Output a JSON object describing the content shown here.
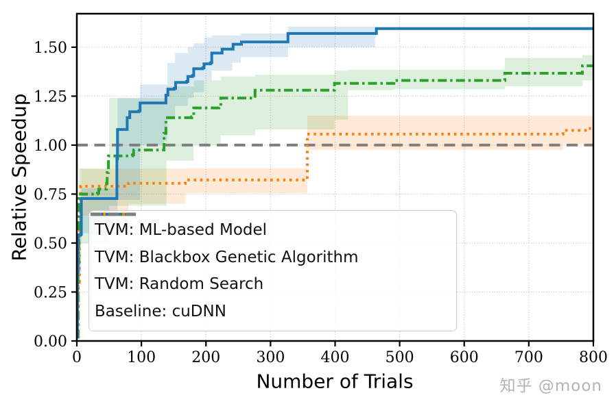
{
  "figure": {
    "watermark": "知乎 @moon",
    "background": "#ffffff",
    "frame_color": "#000000",
    "grid_color": "#c9c9c9"
  },
  "chart_data": {
    "type": "line",
    "title": "",
    "xlabel": "Number of Trials",
    "ylabel": "Relative Speedup",
    "xlim": [
      0,
      800
    ],
    "ylim": [
      0,
      1.671
    ],
    "grid": true,
    "legend_position": "lower left",
    "xticks": [
      {
        "v": 0,
        "label": "0"
      },
      {
        "v": 100,
        "label": "100"
      },
      {
        "v": 200,
        "label": "200"
      },
      {
        "v": 300,
        "label": "300"
      },
      {
        "v": 400,
        "label": "400"
      },
      {
        "v": 500,
        "label": "500"
      },
      {
        "v": 600,
        "label": "600"
      },
      {
        "v": 700,
        "label": "700"
      },
      {
        "v": 800,
        "label": "800"
      }
    ],
    "yticks": [
      {
        "v": 0.0,
        "label": "0.00"
      },
      {
        "v": 0.25,
        "label": "0.25"
      },
      {
        "v": 0.5,
        "label": "0.50"
      },
      {
        "v": 0.75,
        "label": "0.75"
      },
      {
        "v": 1.0,
        "label": "1.00"
      },
      {
        "v": 1.25,
        "label": "1.25"
      },
      {
        "v": 1.5,
        "label": "1.50"
      }
    ],
    "series": [
      {
        "name": "Baseline: cuDNN",
        "color": "#7f7f7f",
        "style": "dashed",
        "step": [
          [
            0,
            1.0
          ],
          [
            800,
            1.0
          ]
        ]
      },
      {
        "name": "TVM: Random Search",
        "color": "#ff7f0e",
        "style": "dotted",
        "step": [
          [
            0,
            0.02
          ],
          [
            2,
            0.3
          ],
          [
            4,
            0.56
          ],
          [
            6,
            0.79
          ],
          [
            78,
            0.79
          ],
          [
            80,
            0.805
          ],
          [
            165,
            0.805
          ],
          [
            168,
            0.822
          ],
          [
            355,
            0.822
          ],
          [
            357,
            1.056
          ],
          [
            750,
            1.056
          ],
          [
            753,
            1.075
          ],
          [
            788,
            1.075
          ],
          [
            790,
            1.085
          ],
          [
            800,
            1.085
          ]
        ],
        "band": {
          "x": [
            4,
            6,
            80,
            168,
            355,
            357,
            750,
            753,
            800
          ],
          "hi": [
            0.6,
            0.88,
            0.88,
            0.882,
            0.882,
            1.15,
            1.15,
            1.15,
            1.15
          ],
          "lo": [
            0.02,
            0.64,
            0.7,
            0.755,
            0.755,
            0.975,
            0.975,
            1.005,
            1.005
          ]
        }
      },
      {
        "name": "TVM: Blackbox Genetic Algorithm",
        "color": "#2ca02c",
        "style": "dashdot",
        "step": [
          [
            0,
            0.02
          ],
          [
            2,
            0.4
          ],
          [
            3,
            0.75
          ],
          [
            32,
            0.755
          ],
          [
            34,
            0.775
          ],
          [
            44,
            0.775
          ],
          [
            46,
            0.805
          ],
          [
            47,
            0.86
          ],
          [
            49,
            0.945
          ],
          [
            86,
            0.95
          ],
          [
            88,
            0.975
          ],
          [
            133,
            0.975
          ],
          [
            135,
            1.06
          ],
          [
            138,
            1.14
          ],
          [
            178,
            1.145
          ],
          [
            181,
            1.19
          ],
          [
            220,
            1.195
          ],
          [
            223,
            1.24
          ],
          [
            273,
            1.24
          ],
          [
            276,
            1.28
          ],
          [
            396,
            1.28
          ],
          [
            399,
            1.315
          ],
          [
            488,
            1.315
          ],
          [
            491,
            1.33
          ],
          [
            660,
            1.33
          ],
          [
            663,
            1.367
          ],
          [
            780,
            1.367
          ],
          [
            783,
            1.405
          ],
          [
            800,
            1.405
          ]
        ],
        "band": {
          "x": [
            2,
            3,
            45,
            50,
            133,
            139,
            181,
            223,
            276,
            399,
            420,
            491,
            660,
            663,
            783,
            800
          ],
          "hi": [
            0.55,
            0.88,
            0.88,
            1.24,
            1.24,
            1.3,
            1.33,
            1.35,
            1.36,
            1.38,
            1.385,
            1.385,
            1.385,
            1.445,
            1.46,
            1.46
          ],
          "lo": [
            0.02,
            0.5,
            0.5,
            0.69,
            0.69,
            0.92,
            1.0,
            1.05,
            1.08,
            1.13,
            1.28,
            1.285,
            1.285,
            1.3,
            1.33,
            1.33
          ]
        }
      },
      {
        "name": "TVM: ML-based Model",
        "color": "#1f77b4",
        "style": "solid",
        "step": [
          [
            0,
            0.02
          ],
          [
            1,
            0.35
          ],
          [
            2,
            0.54
          ],
          [
            6,
            0.545
          ],
          [
            7,
            0.727
          ],
          [
            60,
            0.727
          ],
          [
            62,
            0.93
          ],
          [
            63,
            1.08
          ],
          [
            76,
            1.08
          ],
          [
            78,
            1.14
          ],
          [
            82,
            1.17
          ],
          [
            96,
            1.175
          ],
          [
            98,
            1.215
          ],
          [
            135,
            1.215
          ],
          [
            138,
            1.255
          ],
          [
            141,
            1.285
          ],
          [
            151,
            1.29
          ],
          [
            153,
            1.32
          ],
          [
            170,
            1.325
          ],
          [
            172,
            1.35
          ],
          [
            179,
            1.355
          ],
          [
            181,
            1.39
          ],
          [
            195,
            1.395
          ],
          [
            197,
            1.415
          ],
          [
            207,
            1.42
          ],
          [
            209,
            1.47
          ],
          [
            223,
            1.47
          ],
          [
            225,
            1.49
          ],
          [
            240,
            1.49
          ],
          [
            242,
            1.515
          ],
          [
            253,
            1.515
          ],
          [
            255,
            1.527
          ],
          [
            325,
            1.527
          ],
          [
            327,
            1.57
          ],
          [
            462,
            1.57
          ],
          [
            464,
            1.595
          ],
          [
            800,
            1.595
          ]
        ],
        "band": {
          "x": [
            1,
            2,
            7,
            58,
            60,
            63,
            95,
            98,
            135,
            140,
            152,
            172,
            181,
            197,
            209,
            241,
            254,
            327,
            462,
            464,
            800
          ],
          "hi": [
            0.45,
            0.62,
            0.78,
            0.78,
            1.0,
            1.24,
            1.24,
            1.31,
            1.31,
            1.42,
            1.47,
            1.5,
            1.52,
            1.55,
            1.56,
            1.56,
            1.57,
            1.605,
            1.605,
            1.595,
            1.595
          ],
          "lo": [
            0.02,
            0.35,
            0.55,
            0.55,
            0.6,
            0.72,
            0.72,
            1.0,
            1.02,
            1.13,
            1.2,
            1.24,
            1.27,
            1.33,
            1.38,
            1.42,
            1.45,
            1.5,
            1.55,
            1.595,
            1.595
          ]
        }
      }
    ],
    "legend_order": [
      3,
      2,
      1,
      0
    ]
  }
}
